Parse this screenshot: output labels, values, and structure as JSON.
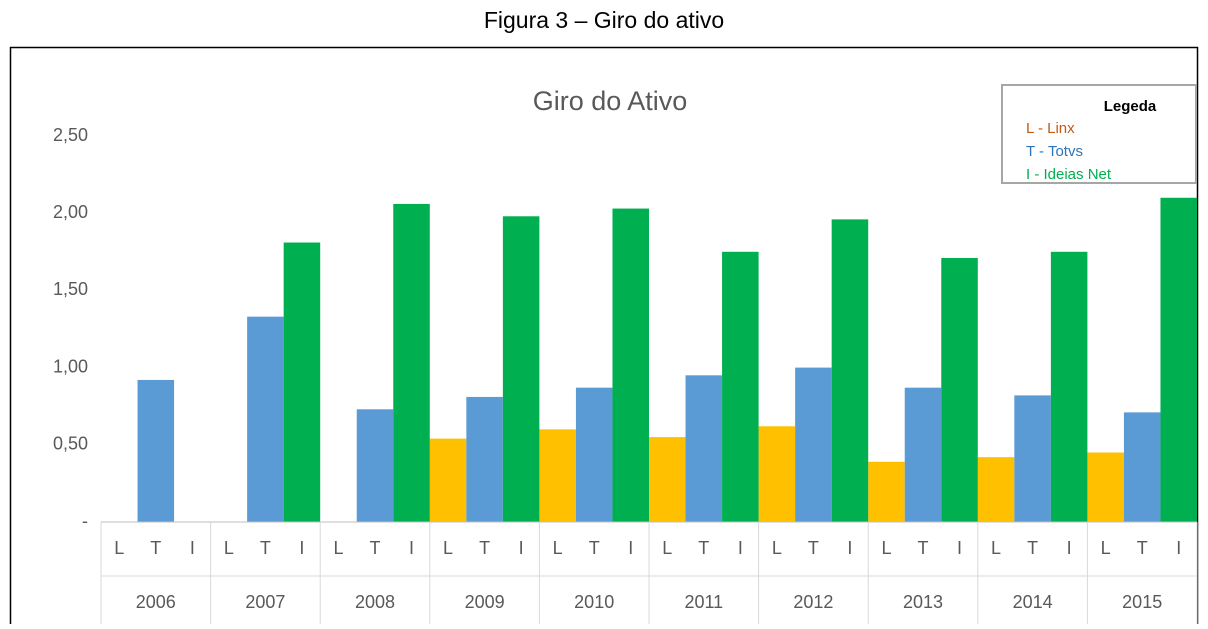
{
  "chart_data": {
    "type": "bar",
    "caption": "Figura 3 – Giro do ativo",
    "title": "Giro do Ativo",
    "categories": [
      "2006",
      "2007",
      "2008",
      "2009",
      "2010",
      "2011",
      "2012",
      "2013",
      "2014",
      "2015"
    ],
    "subcategories": [
      "L",
      "T",
      "I"
    ],
    "legend_title": "Legeda",
    "legend_position": "upper right",
    "series": [
      {
        "name": "L - Linx",
        "color": "#ffc000",
        "label_color": "#c55a11",
        "values": [
          null,
          null,
          null,
          0.54,
          0.6,
          0.55,
          0.62,
          0.39,
          0.42,
          0.45
        ]
      },
      {
        "name": "T - Totvs",
        "color": "#5b9bd5",
        "label_color": "#2e75b6",
        "values": [
          0.92,
          1.33,
          0.73,
          0.81,
          0.87,
          0.95,
          1.0,
          0.87,
          0.82,
          0.71
        ]
      },
      {
        "name": "I - Ideias Net",
        "color": "#00b050",
        "label_color": "#00b050",
        "values": [
          null,
          1.81,
          2.06,
          1.98,
          2.03,
          1.75,
          1.96,
          1.71,
          1.75,
          2.1
        ]
      }
    ],
    "ylim": [
      0,
      2.5
    ],
    "yticks": [
      {
        "value": 0,
        "label": "-"
      },
      {
        "value": 0.5,
        "label": "0,50"
      },
      {
        "value": 1,
        "label": "1,00"
      },
      {
        "value": 1.5,
        "label": "1,50"
      },
      {
        "value": 2,
        "label": "2,00"
      },
      {
        "value": 2.5,
        "label": "2,50"
      }
    ],
    "grid": false
  }
}
